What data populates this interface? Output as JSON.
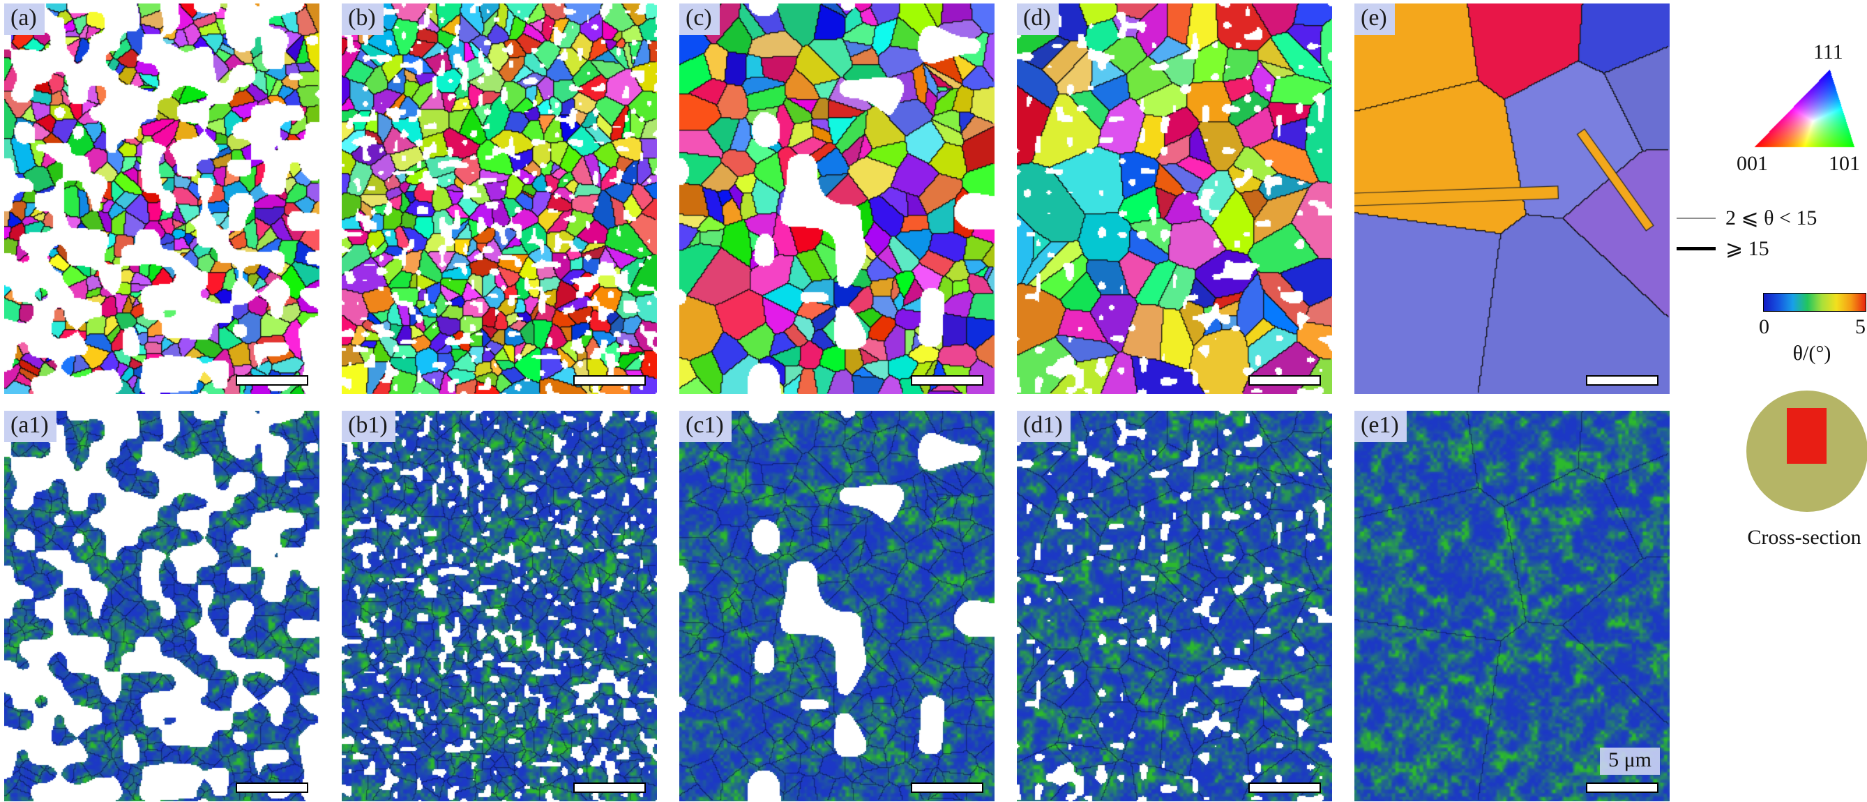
{
  "panels_top": [
    {
      "label": "(a)"
    },
    {
      "label": "(b)"
    },
    {
      "label": "(c)"
    },
    {
      "label": "(d)"
    },
    {
      "label": "(e)"
    }
  ],
  "panels_bottom": [
    {
      "label": "(a1)"
    },
    {
      "label": "(b1)"
    },
    {
      "label": "(c1)"
    },
    {
      "label": "(d1)"
    },
    {
      "label": "(e1)"
    }
  ],
  "legend": {
    "ipf_triangle": {
      "corner_top": "111",
      "corner_bottom_left": "001",
      "corner_bottom_right": "101"
    },
    "boundary_lines": [
      {
        "label": "2 ⩽ θ < 15"
      },
      {
        "label": "⩾ 15"
      }
    ],
    "colorbar": {
      "tick_min": "0",
      "tick_max": "5",
      "axis_label": "θ/(°)"
    },
    "cross_section": {
      "label": "Cross-section"
    },
    "scale_bar_label": "5 μm"
  },
  "colors": {
    "panel_label_bg": "#c9d1f2",
    "scale_bar_fill": "#ffffff",
    "boundary_thin": "#8f8f8f",
    "boundary_thick": "#000000",
    "colorbar_gradient": [
      "#141bc4",
      "#1553e0",
      "#18a0e8",
      "#22c55e",
      "#a8e03a",
      "#f2e01e",
      "#f59a14",
      "#e8250f"
    ],
    "cross_section_fill": "#b5b566",
    "cross_section_marker": "#e81e14",
    "kam_low": "#1c38c6",
    "kam_high": "#2cb92e"
  }
}
